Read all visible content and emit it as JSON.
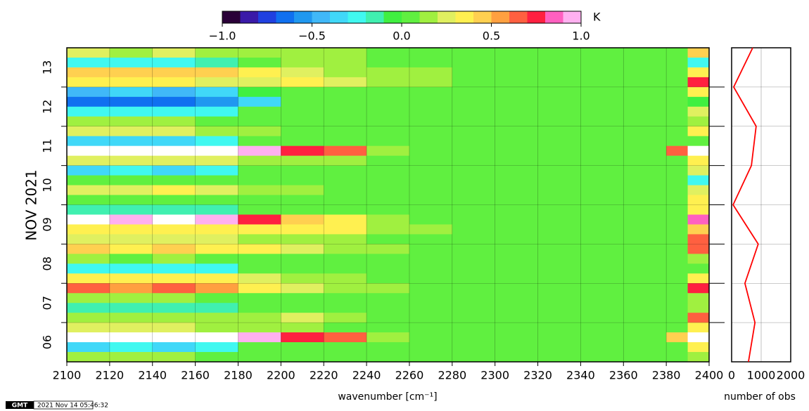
{
  "chart_data": {
    "type": "heatmap",
    "xlabel": "wavenumber [cm⁻¹]",
    "ylabel": "NOV 2021",
    "xlim": [
      2100,
      2400
    ],
    "xticks": [
      2100,
      2120,
      2140,
      2160,
      2180,
      2200,
      2220,
      2240,
      2260,
      2280,
      2300,
      2320,
      2340,
      2360,
      2380,
      2400
    ],
    "ylim": [
      6,
      14
    ],
    "yticks": [
      {
        "value": 6.5,
        "label": "06"
      },
      {
        "value": 7.5,
        "label": "07"
      },
      {
        "value": 8.5,
        "label": "08"
      },
      {
        "value": 9.5,
        "label": "09"
      },
      {
        "value": 10.5,
        "label": "10"
      },
      {
        "value": 11.5,
        "label": "11"
      },
      {
        "value": 12.5,
        "label": "12"
      },
      {
        "value": 13.5,
        "label": "13"
      }
    ],
    "yminor": [
      7,
      8,
      9,
      10,
      11,
      12,
      13
    ],
    "grid": true,
    "x": [
      2100,
      2120,
      2140,
      2160,
      2180,
      2200,
      2220,
      2240,
      2260,
      2280,
      2300,
      2320,
      2340,
      2360,
      2380,
      2390,
      2400
    ],
    "y": [
      14,
      13.75,
      13.5,
      13.25,
      13,
      12.75,
      12.5,
      12.25,
      12,
      11.75,
      11.5,
      11.25,
      11,
      10.75,
      10.5,
      10.25,
      10,
      9.75,
      9.5,
      9.25,
      9,
      8.75,
      8.5,
      8.25,
      8,
      7.75,
      7.5,
      7.25,
      7,
      6.75,
      6.5,
      6.25,
      6
    ],
    "values": [
      [
        0.2,
        0.15,
        0.2,
        0.1,
        0.1,
        0.1,
        0.1,
        0.05,
        0.05,
        0.05,
        0.05,
        0.05,
        0.05,
        0.05,
        0.05,
        0.4
      ],
      [
        -0.3,
        -0.25,
        -0.3,
        -0.2,
        0.05,
        0.1,
        0.1,
        0.05,
        0.05,
        0.05,
        0.05,
        0.05,
        0.05,
        0.05,
        0.05,
        -0.3
      ],
      [
        0.45,
        0.4,
        0.45,
        0.4,
        0.3,
        0.2,
        0.15,
        0.1,
        0.1,
        0.05,
        0.05,
        0.05,
        0.05,
        0.05,
        0.05,
        0.3
      ],
      [
        0.3,
        0.3,
        0.3,
        0.25,
        0.2,
        0.3,
        0.25,
        0.1,
        0.1,
        0.05,
        0.05,
        0.05,
        0.05,
        0.05,
        0.05,
        0.7
      ],
      [
        -0.45,
        -0.4,
        -0.45,
        -0.4,
        -0.1,
        0.05,
        0.05,
        0.05,
        0.05,
        0.05,
        0.05,
        0.05,
        0.05,
        0.05,
        0.05,
        0.3
      ],
      [
        -0.7,
        -0.65,
        -0.7,
        -0.6,
        -0.4,
        0,
        0.05,
        0.05,
        0.05,
        0.05,
        0.05,
        0.05,
        0.05,
        0.05,
        0.05,
        -0.1
      ],
      [
        -0.3,
        -0.3,
        -0.3,
        -0.25,
        0.05,
        0.05,
        0.05,
        0.05,
        0.05,
        0.05,
        0.05,
        0.05,
        0.05,
        0.05,
        0.05,
        0.2
      ],
      [
        0.1,
        0.1,
        0.1,
        0.05,
        0.05,
        0.05,
        0.05,
        0.05,
        0.05,
        0.05,
        0.05,
        0.05,
        0.05,
        0.05,
        0.05,
        0.1
      ],
      [
        0.2,
        0.2,
        0.2,
        0.15,
        0.1,
        0.05,
        0.05,
        0.05,
        0.05,
        0.05,
        0.05,
        0.05,
        0.05,
        0.05,
        0.05,
        0.3
      ],
      [
        -0.4,
        -0.35,
        -0.4,
        -0.3,
        0.05,
        0.05,
        0.05,
        0.05,
        0.05,
        0.05,
        0.05,
        0.05,
        0.05,
        0.05,
        0.05,
        0.05
      ],
      [
        1.2,
        1.2,
        1.2,
        1.2,
        1.0,
        0.75,
        0.6,
        0.1,
        0.05,
        0.05,
        0.05,
        0.05,
        0.05,
        0.05,
        0.6,
        1.2
      ],
      [
        0.2,
        0.2,
        0.2,
        0.2,
        0.15,
        0.1,
        0.1,
        0.05,
        0.05,
        0.05,
        0.05,
        0.05,
        0.05,
        0.05,
        0.05,
        0.3
      ],
      [
        -0.35,
        -0.3,
        -0.35,
        -0.3,
        0.05,
        0.05,
        0.05,
        0.05,
        0.05,
        0.05,
        0.05,
        0.05,
        0.05,
        0.05,
        0.05,
        0.2
      ],
      [
        0.05,
        0.05,
        0.05,
        0.05,
        0.05,
        0.05,
        0.05,
        0.05,
        0.05,
        0.05,
        0.05,
        0.05,
        0.05,
        0.05,
        0.05,
        -0.3
      ],
      [
        0.25,
        0.25,
        0.3,
        0.2,
        0.1,
        0.1,
        0.05,
        0.05,
        0.05,
        0.05,
        0.05,
        0.05,
        0.05,
        0.05,
        0.05,
        0.2
      ],
      [
        0.05,
        0.05,
        0.05,
        0.05,
        0.05,
        0.05,
        0.05,
        0.05,
        0.05,
        0.05,
        0.05,
        0.05,
        0.05,
        0.05,
        0.05,
        0.3
      ],
      [
        -0.2,
        -0.15,
        -0.2,
        -0.15,
        0.05,
        0.05,
        0.05,
        0.05,
        0.05,
        0.05,
        0.05,
        0.05,
        0.05,
        0.05,
        0.05,
        0.3
      ],
      [
        1.1,
        1.0,
        1.1,
        1.0,
        0.7,
        0.4,
        0.3,
        0.1,
        0.05,
        0.05,
        0.05,
        0.05,
        0.05,
        0.05,
        0.05,
        0.85
      ],
      [
        0.3,
        0.35,
        0.3,
        0.3,
        0.3,
        0.3,
        0.3,
        0.15,
        0.1,
        0.05,
        0.05,
        0.05,
        0.05,
        0.05,
        0.05,
        0.4
      ],
      [
        0.2,
        0.2,
        0.2,
        0.2,
        0.15,
        0.1,
        0.1,
        0.05,
        0.05,
        0.05,
        0.05,
        0.05,
        0.05,
        0.05,
        0.05,
        0.6
      ],
      [
        0.4,
        0.35,
        0.4,
        0.35,
        0.3,
        0.2,
        0.15,
        0.1,
        0.05,
        0.05,
        0.05,
        0.05,
        0.05,
        0.05,
        0.05,
        0.65
      ],
      [
        0.1,
        0.05,
        0.1,
        0.05,
        0.05,
        0.05,
        0.05,
        0.05,
        0.05,
        0.05,
        0.05,
        0.05,
        0.05,
        0.05,
        0.05,
        0.1
      ],
      [
        -0.3,
        -0.25,
        -0.3,
        -0.25,
        0.05,
        0.05,
        0.05,
        0.05,
        0.05,
        0.05,
        0.05,
        0.05,
        0.05,
        0.05,
        0.05,
        0.05
      ],
      [
        0.35,
        0.3,
        0.35,
        0.3,
        0.2,
        0.15,
        0.1,
        0.05,
        0.05,
        0.05,
        0.05,
        0.05,
        0.05,
        0.05,
        0.05,
        0.3
      ],
      [
        0.6,
        0.55,
        0.6,
        0.55,
        0.3,
        0.2,
        0.15,
        0.1,
        0.05,
        0.05,
        0.05,
        0.05,
        0.05,
        0.05,
        0.05,
        0.7
      ],
      [
        0.1,
        0.1,
        0.1,
        0.05,
        0.05,
        0.05,
        0.05,
        0.05,
        0.05,
        0.05,
        0.05,
        0.05,
        0.05,
        0.05,
        0.05,
        0.1
      ],
      [
        -0.2,
        -0.2,
        -0.2,
        -0.15,
        0.05,
        0.05,
        0.05,
        0.05,
        0.05,
        0.05,
        0.05,
        0.05,
        0.05,
        0.05,
        0.05,
        0.1
      ],
      [
        0.1,
        0.1,
        0.1,
        0.1,
        0.1,
        0.2,
        0.1,
        0.05,
        0.05,
        0.05,
        0.05,
        0.05,
        0.05,
        0.05,
        0.05,
        0.6
      ],
      [
        0.2,
        0.2,
        0.2,
        0.15,
        0.1,
        0.1,
        0.05,
        0.05,
        0.05,
        0.05,
        0.05,
        0.05,
        0.05,
        0.05,
        0.05,
        0.3
      ],
      [
        1.2,
        1.2,
        1.2,
        1.1,
        0.9,
        0.7,
        0.6,
        0.1,
        0.05,
        0.05,
        0.05,
        0.05,
        0.05,
        0.05,
        0.4,
        1.2
      ],
      [
        -0.35,
        -0.3,
        -0.35,
        -0.3,
        0.05,
        0.05,
        0.05,
        0.05,
        0.05,
        0.05,
        0.05,
        0.05,
        0.05,
        0.05,
        0.05,
        0.3
      ],
      [
        0.1,
        0.1,
        0.1,
        0.05,
        0.05,
        0.05,
        0.05,
        0.05,
        0.05,
        0.05,
        0.05,
        0.05,
        0.05,
        0.05,
        0.05,
        0.1
      ]
    ],
    "colorbar": {
      "label": "K",
      "clim": [
        -1,
        1
      ],
      "ticks": [
        {
          "value": -1,
          "label": "−1.0"
        },
        {
          "value": -0.5,
          "label": "−0.5"
        },
        {
          "value": 0,
          "label": "0.0"
        },
        {
          "value": 0.5,
          "label": "0.5"
        },
        {
          "value": 1,
          "label": "1.0"
        }
      ],
      "colors": [
        "#2a0038",
        "#3a1aa8",
        "#2040e0",
        "#1070f0",
        "#2098f0",
        "#40b8f8",
        "#40d8f8",
        "#40f8f0",
        "#40f0b0",
        "#40f040",
        "#60f040",
        "#a0f040",
        "#e0f060",
        "#fff050",
        "#ffd050",
        "#ffa040",
        "#ff6040",
        "#ff2040",
        "#ff60c0",
        "#ffb0f0"
      ],
      "over_color": "#ffffff"
    },
    "obs": {
      "xlabel": "number of obs",
      "xlim": [
        0,
        2000
      ],
      "xticks": [
        0,
        1000,
        2000
      ],
      "y": [
        14,
        13,
        12,
        11,
        10,
        9,
        8,
        7,
        6
      ],
      "values": [
        714,
        70,
        830,
        670,
        50,
        900,
        450,
        790,
        570
      ],
      "color": "#ff0000"
    },
    "footer": {
      "logo": "GMT",
      "timestamp": "2021 Nov 14 05:46:32"
    }
  }
}
